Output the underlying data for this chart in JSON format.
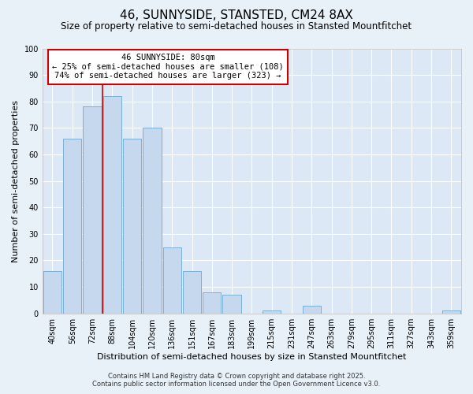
{
  "title": "46, SUNNYSIDE, STANSTED, CM24 8AX",
  "subtitle": "Size of property relative to semi-detached houses in Stansted Mountfitchet",
  "xlabel": "Distribution of semi-detached houses by size in Stansted Mountfitchet",
  "ylabel": "Number of semi-detached properties",
  "footer_line1": "Contains HM Land Registry data © Crown copyright and database right 2025.",
  "footer_line2": "Contains public sector information licensed under the Open Government Licence v3.0.",
  "bar_labels": [
    "40sqm",
    "56sqm",
    "72sqm",
    "88sqm",
    "104sqm",
    "120sqm",
    "136sqm",
    "151sqm",
    "167sqm",
    "183sqm",
    "199sqm",
    "215sqm",
    "231sqm",
    "247sqm",
    "263sqm",
    "279sqm",
    "295sqm",
    "311sqm",
    "327sqm",
    "343sqm",
    "359sqm"
  ],
  "bar_values": [
    16,
    66,
    78,
    82,
    66,
    70,
    25,
    16,
    8,
    7,
    0,
    1,
    0,
    3,
    0,
    0,
    0,
    0,
    0,
    0,
    1
  ],
  "bar_color": "#c5d8ed",
  "bar_edge_color": "#7aafd4",
  "background_color": "#e8f0f8",
  "plot_background_color": "#dce8f5",
  "grid_color": "#ffffff",
  "vline_x_index": 3,
  "vline_color": "#cc0000",
  "annotation_title": "46 SUNNYSIDE: 80sqm",
  "annotation_line1": "← 25% of semi-detached houses are smaller (108)",
  "annotation_line2": "74% of semi-detached houses are larger (323) →",
  "annotation_box_color": "#cc0000",
  "ylim": [
    0,
    100
  ],
  "yticks": [
    0,
    10,
    20,
    30,
    40,
    50,
    60,
    70,
    80,
    90,
    100
  ],
  "title_fontsize": 11,
  "subtitle_fontsize": 8.5,
  "axis_label_fontsize": 8,
  "tick_fontsize": 7,
  "footer_fontsize": 6,
  "annotation_fontsize": 7.5
}
